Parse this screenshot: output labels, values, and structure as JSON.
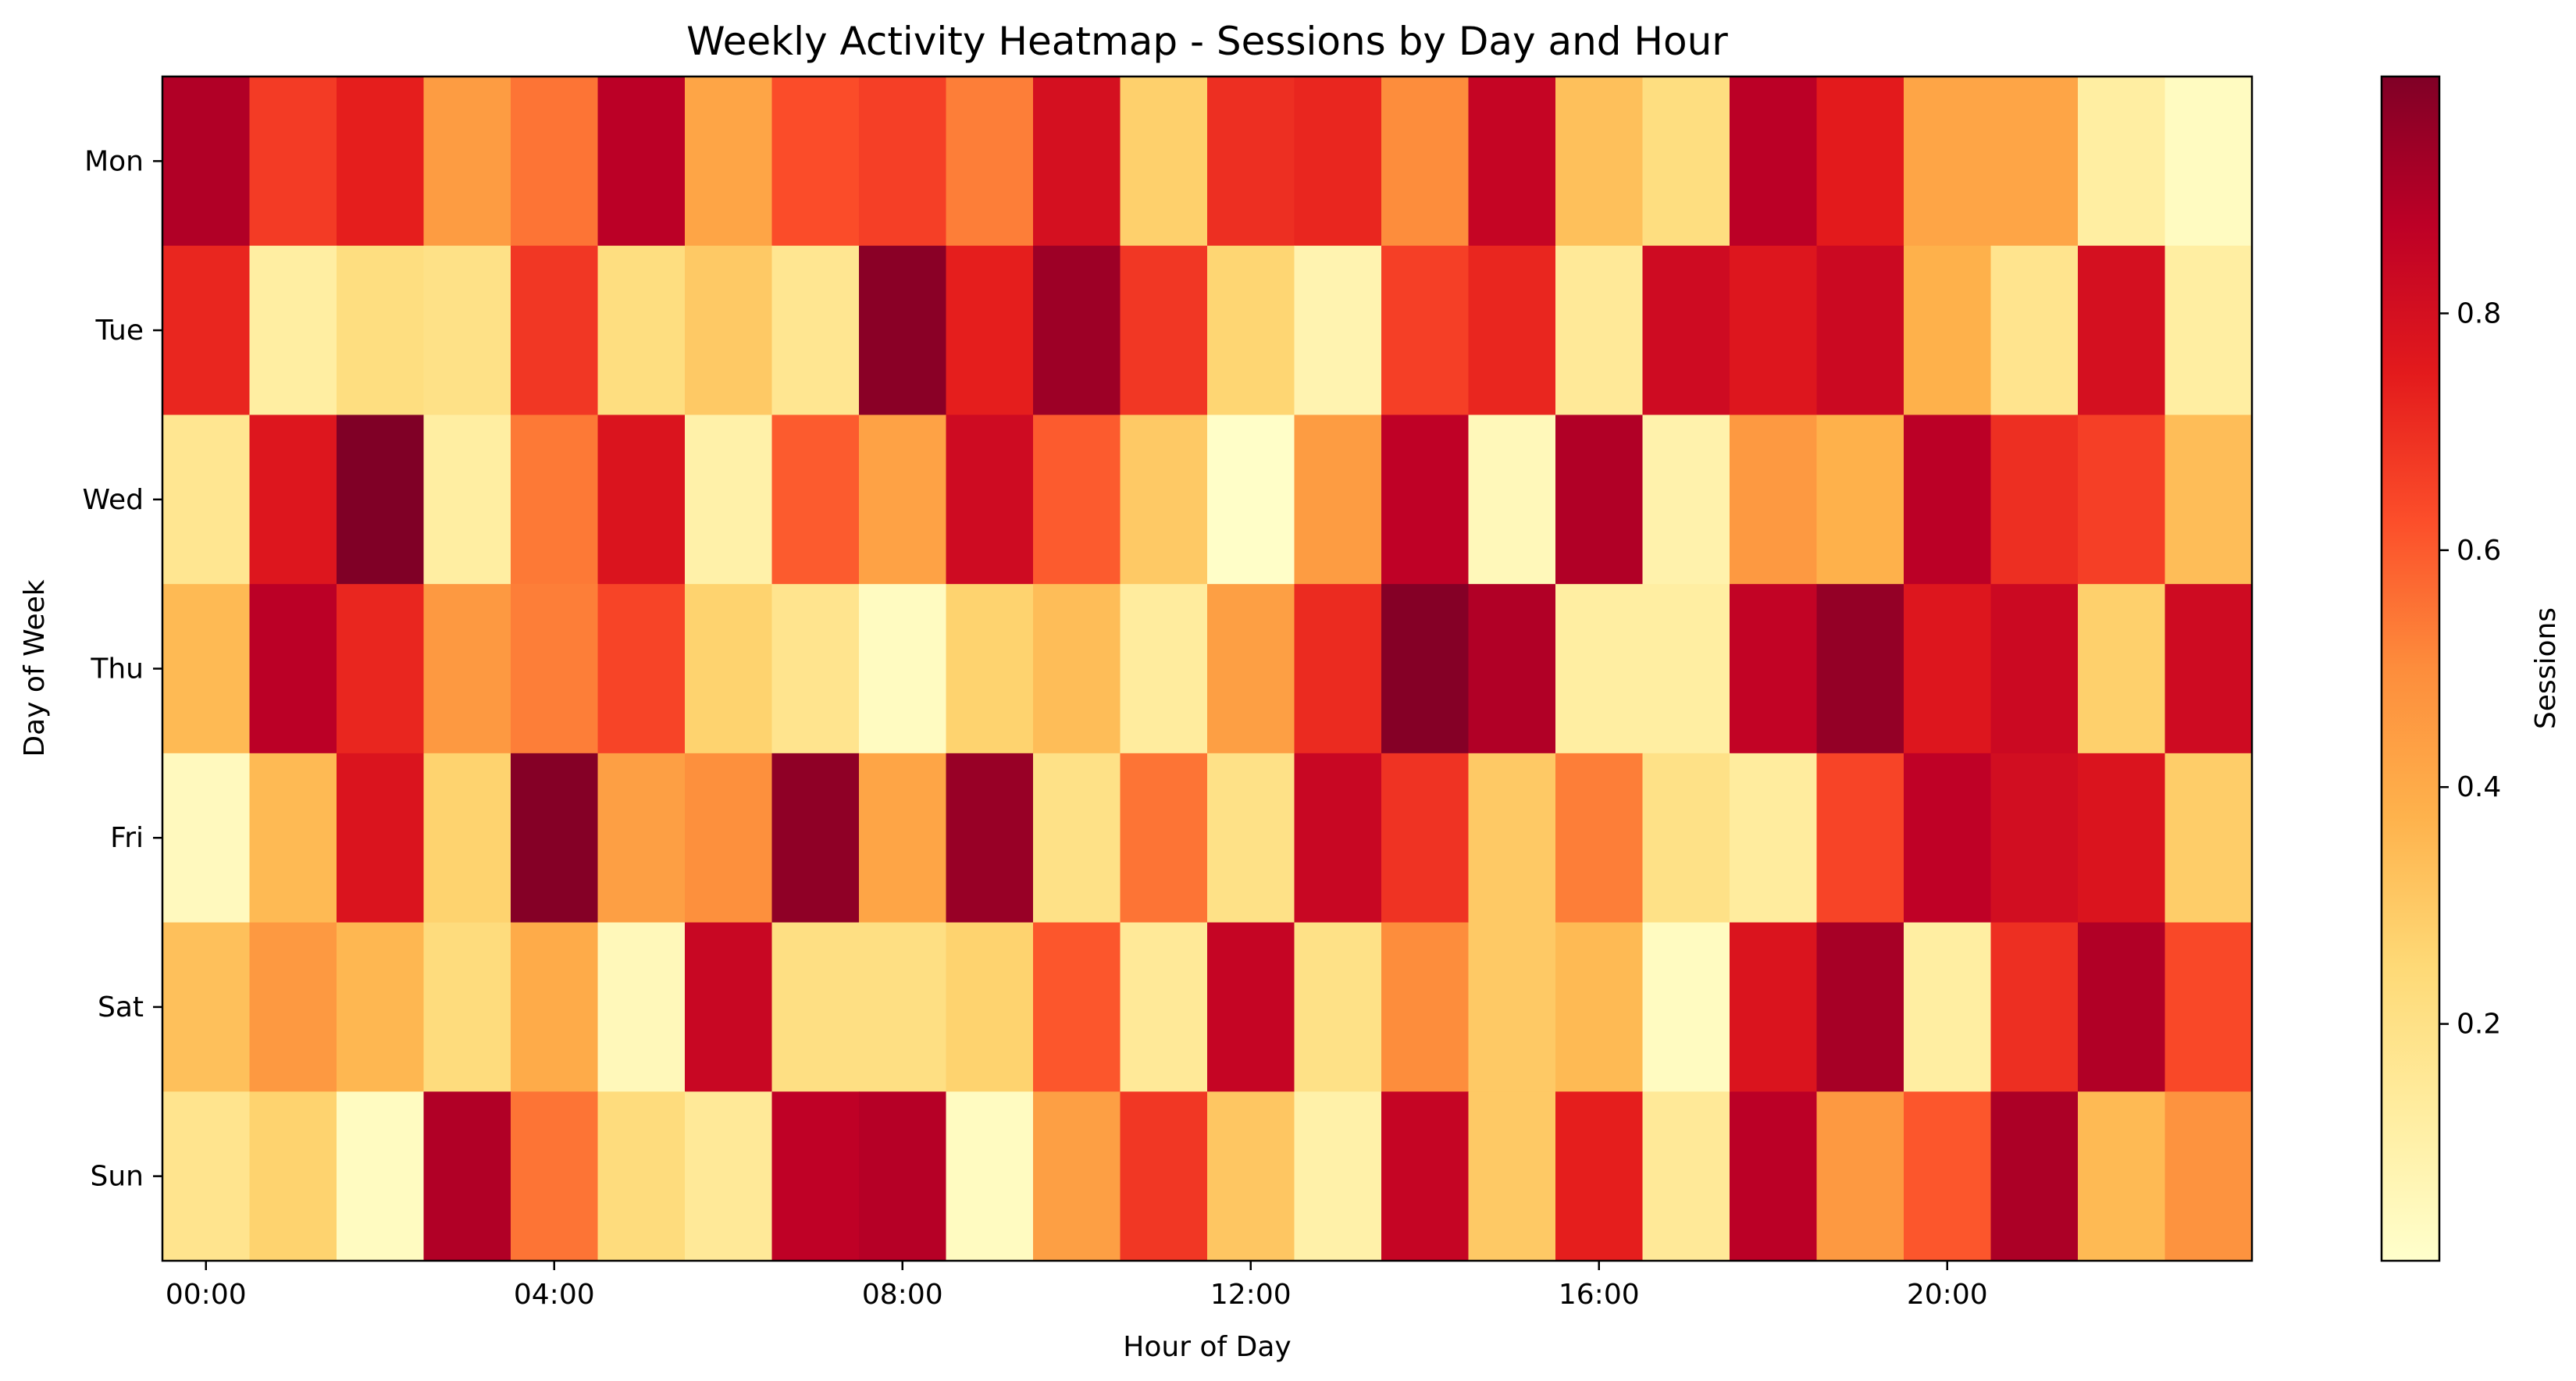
{
  "chart_data": {
    "type": "heatmap",
    "title": "Weekly Activity Heatmap - Sessions by Day and Hour",
    "xlabel": "Hour of Day",
    "ylabel": "Day of Week",
    "colorbar_label": "Sessions",
    "colormap": "YlOrRd",
    "value_range": [
      0.0,
      1.0
    ],
    "colorbar_ticks": [
      "0.2",
      "0.4",
      "0.6",
      "0.8"
    ],
    "colorbar_tick_values": [
      0.2,
      0.4,
      0.6,
      0.8
    ],
    "x_categories": [
      "00:00",
      "01:00",
      "02:00",
      "03:00",
      "04:00",
      "05:00",
      "06:00",
      "07:00",
      "08:00",
      "09:00",
      "10:00",
      "11:00",
      "12:00",
      "13:00",
      "14:00",
      "15:00",
      "16:00",
      "17:00",
      "18:00",
      "19:00",
      "20:00",
      "21:00",
      "22:00",
      "23:00"
    ],
    "x_tick_labels": [
      "00:00",
      "04:00",
      "08:00",
      "12:00",
      "16:00",
      "20:00"
    ],
    "x_tick_indices": [
      0,
      4,
      8,
      12,
      16,
      20
    ],
    "y_categories": [
      "Mon",
      "Tue",
      "Wed",
      "Thu",
      "Fri",
      "Sat",
      "Sun"
    ],
    "values": [
      [
        0.9,
        0.67,
        0.74,
        0.45,
        0.55,
        0.88,
        0.42,
        0.63,
        0.66,
        0.53,
        0.8,
        0.28,
        0.7,
        0.72,
        0.5,
        0.85,
        0.33,
        0.22,
        0.88,
        0.75,
        0.42,
        0.42,
        0.12,
        0.03
      ],
      [
        0.72,
        0.12,
        0.22,
        0.2,
        0.68,
        0.22,
        0.3,
        0.17,
        0.98,
        0.74,
        0.94,
        0.68,
        0.26,
        0.08,
        0.66,
        0.72,
        0.15,
        0.82,
        0.77,
        0.83,
        0.38,
        0.18,
        0.8,
        0.12
      ],
      [
        0.17,
        0.77,
        1.0,
        0.12,
        0.54,
        0.78,
        0.1,
        0.6,
        0.43,
        0.82,
        0.6,
        0.3,
        0.01,
        0.45,
        0.87,
        0.05,
        0.9,
        0.09,
        0.46,
        0.38,
        0.88,
        0.7,
        0.66,
        0.34
      ],
      [
        0.35,
        0.88,
        0.72,
        0.46,
        0.53,
        0.65,
        0.27,
        0.18,
        0.03,
        0.27,
        0.34,
        0.13,
        0.44,
        0.71,
        0.99,
        0.9,
        0.12,
        0.12,
        0.86,
        0.96,
        0.77,
        0.83,
        0.28,
        0.82
      ],
      [
        0.04,
        0.35,
        0.78,
        0.27,
        0.99,
        0.44,
        0.49,
        0.97,
        0.42,
        0.95,
        0.2,
        0.55,
        0.2,
        0.84,
        0.69,
        0.3,
        0.53,
        0.2,
        0.13,
        0.65,
        0.87,
        0.81,
        0.78,
        0.29
      ],
      [
        0.33,
        0.46,
        0.36,
        0.23,
        0.4,
        0.05,
        0.84,
        0.21,
        0.21,
        0.27,
        0.61,
        0.15,
        0.85,
        0.2,
        0.5,
        0.3,
        0.35,
        0.03,
        0.78,
        0.92,
        0.12,
        0.7,
        0.9,
        0.64
      ],
      [
        0.18,
        0.27,
        0.03,
        0.9,
        0.55,
        0.23,
        0.15,
        0.87,
        0.89,
        0.03,
        0.44,
        0.68,
        0.31,
        0.1,
        0.85,
        0.3,
        0.74,
        0.15,
        0.88,
        0.46,
        0.61,
        0.91,
        0.35,
        0.48
      ]
    ]
  }
}
